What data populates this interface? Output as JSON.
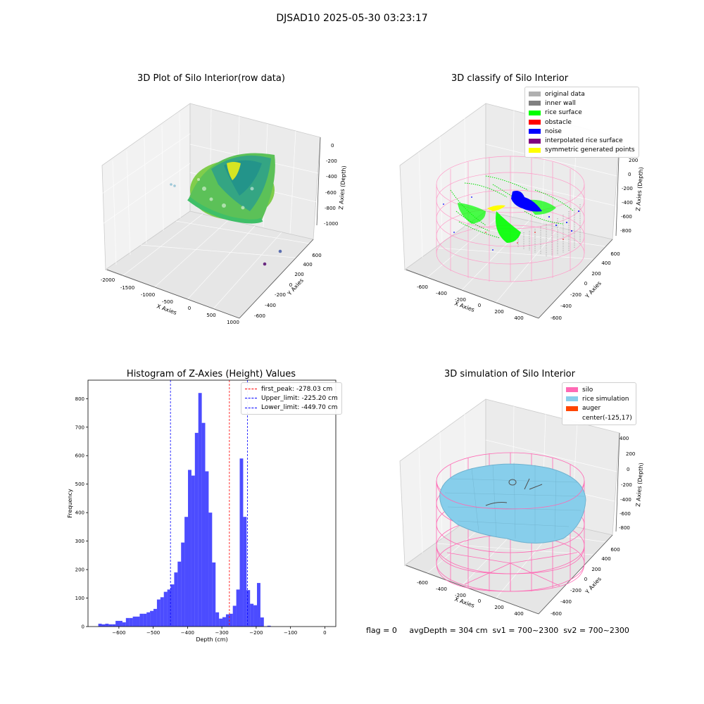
{
  "suptitle": "DJSAD10 2025-05-30 03:23:17",
  "panels": {
    "raw": {
      "title": "3D Plot of Silo Interior(row data)",
      "xlabel": "X Axies",
      "ylabel": "Y Axies",
      "zlabel": "Z Axies (Depth)",
      "xticks": [
        "-2000",
        "-1500",
        "-1000",
        "-500",
        "0",
        "500",
        "1000"
      ],
      "yticks": [
        "-600",
        "-400",
        "-200",
        "0",
        "200",
        "400",
        "600"
      ],
      "zticks": [
        "0",
        "-200",
        "-400",
        "-600",
        "-800",
        "-1000"
      ]
    },
    "classify": {
      "title": "3D classify of Silo Interior",
      "xlabel": "X Axies",
      "ylabel": "Y Axies",
      "zlabel": "Z Axies (Depth)",
      "xticks": [
        "-600",
        "-400",
        "-200",
        "0",
        "200",
        "400"
      ],
      "yticks": [
        "-600",
        "-400",
        "-200",
        "0",
        "200",
        "400",
        "600"
      ],
      "zticks": [
        "200",
        "0",
        "-200",
        "-400",
        "-600",
        "-800"
      ],
      "legend": [
        {
          "label": "original data",
          "color": "#b0b0b0"
        },
        {
          "label": "inner wall",
          "color": "#808080"
        },
        {
          "label": "rice surface",
          "color": "#00ff00"
        },
        {
          "label": "obstacle",
          "color": "#ff0000"
        },
        {
          "label": "noise",
          "color": "#0000ff"
        },
        {
          "label": "interpolated rice surface",
          "color": "#800080"
        },
        {
          "label": "symmetric generated points",
          "color": "#ffff00"
        }
      ]
    },
    "simulation": {
      "title": "3D simulation of Silo Interior",
      "xlabel": "X Axies",
      "ylabel": "Y Axies",
      "zlabel": "Z Axies (Depth)",
      "xticks": [
        "-600",
        "-400",
        "-200",
        "0",
        "200",
        "400"
      ],
      "yticks": [
        "-600",
        "-400",
        "-200",
        "0",
        "200",
        "400",
        "600"
      ],
      "zticks": [
        "400",
        "200",
        "0",
        "-200",
        "-400",
        "-600",
        "-800"
      ],
      "legend": [
        {
          "label": "silo",
          "color": "#ff69b4"
        },
        {
          "label": "rice simulation",
          "color": "#87ceeb"
        },
        {
          "label": "auger",
          "color": "#ff4500"
        },
        {
          "label": "center(-125,17)",
          "color": ""
        }
      ]
    }
  },
  "footer": "flag = 0     avgDepth = 304 cm  sv1 = 700~2300  sv2 = 700~2300",
  "chart_data": {
    "type": "bar",
    "title": "Histogram of Z-Axies (Height) Values",
    "xlabel": "Depth (cm)",
    "ylabel": "Frequency",
    "bar_color": "#0000ff",
    "xlim": [
      -690,
      32
    ],
    "ylim": [
      0,
      865
    ],
    "bin_start": -660,
    "bin_width": 10.05,
    "values": [
      10,
      8,
      10,
      8,
      8,
      20,
      20,
      15,
      30,
      30,
      35,
      35,
      45,
      45,
      50,
      55,
      62,
      95,
      103,
      122,
      130,
      148,
      190,
      228,
      295,
      385,
      550,
      530,
      680,
      820,
      715,
      545,
      400,
      225,
      50,
      28,
      33,
      43,
      45,
      73,
      130,
      590,
      385,
      128,
      80,
      75,
      153,
      32,
      0,
      3
    ],
    "xticks": [
      -600,
      -500,
      -400,
      -300,
      -200,
      -100,
      0
    ],
    "xtick_labels": [
      "−600",
      "−500",
      "−400",
      "−300",
      "−200",
      "−100",
      "0"
    ],
    "yticks": [
      0,
      100,
      200,
      300,
      400,
      500,
      600,
      700,
      800
    ],
    "ytick_labels": [
      "0",
      "100",
      "200",
      "300",
      "400",
      "500",
      "600",
      "700",
      "800"
    ],
    "vlines": [
      {
        "label": "first_peak: -278.03 cm",
        "x": -278.03,
        "color": "#ff0000"
      },
      {
        "label": "Upper_limit: -225.20 cm",
        "x": -225.2,
        "color": "#0000ff"
      },
      {
        "label": "Lower_limit: -449.70 cm",
        "x": -449.7,
        "color": "#0000ff"
      }
    ],
    "legend_position": "top-right"
  }
}
